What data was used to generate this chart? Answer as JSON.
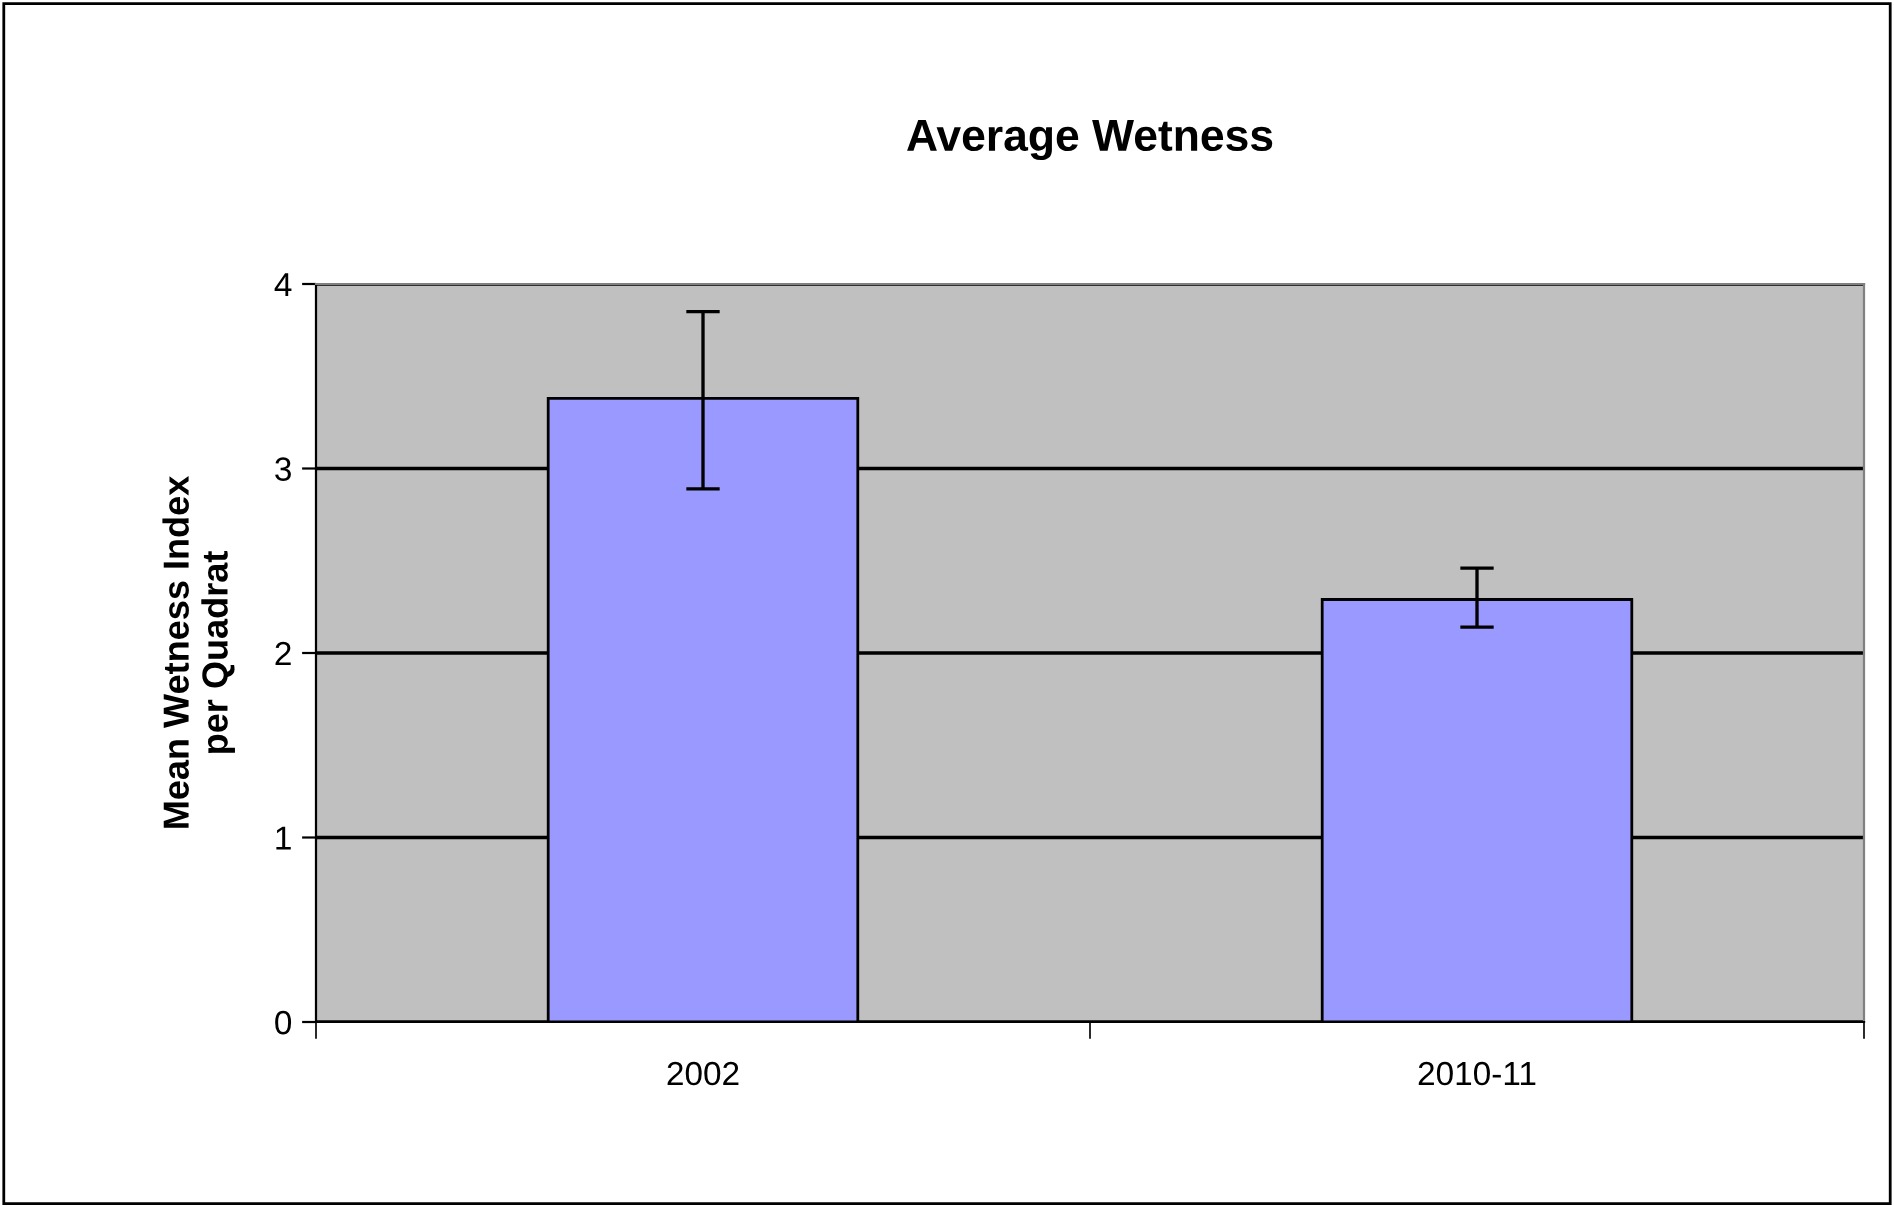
{
  "chart_data": {
    "type": "bar",
    "title": "Average Wetness",
    "ylabel": "Mean Wetness Index\nper Quadrat",
    "categories": [
      "2002",
      "2010-11"
    ],
    "values": [
      3.38,
      2.29
    ],
    "color": "#9999ff",
    "errors": [
      [
        2.89,
        3.85
      ],
      [
        2.14,
        2.46
      ]
    ],
    "ylim": [
      0,
      4
    ],
    "yticks": [
      0,
      1,
      2,
      3,
      4
    ],
    "grid": "y"
  }
}
